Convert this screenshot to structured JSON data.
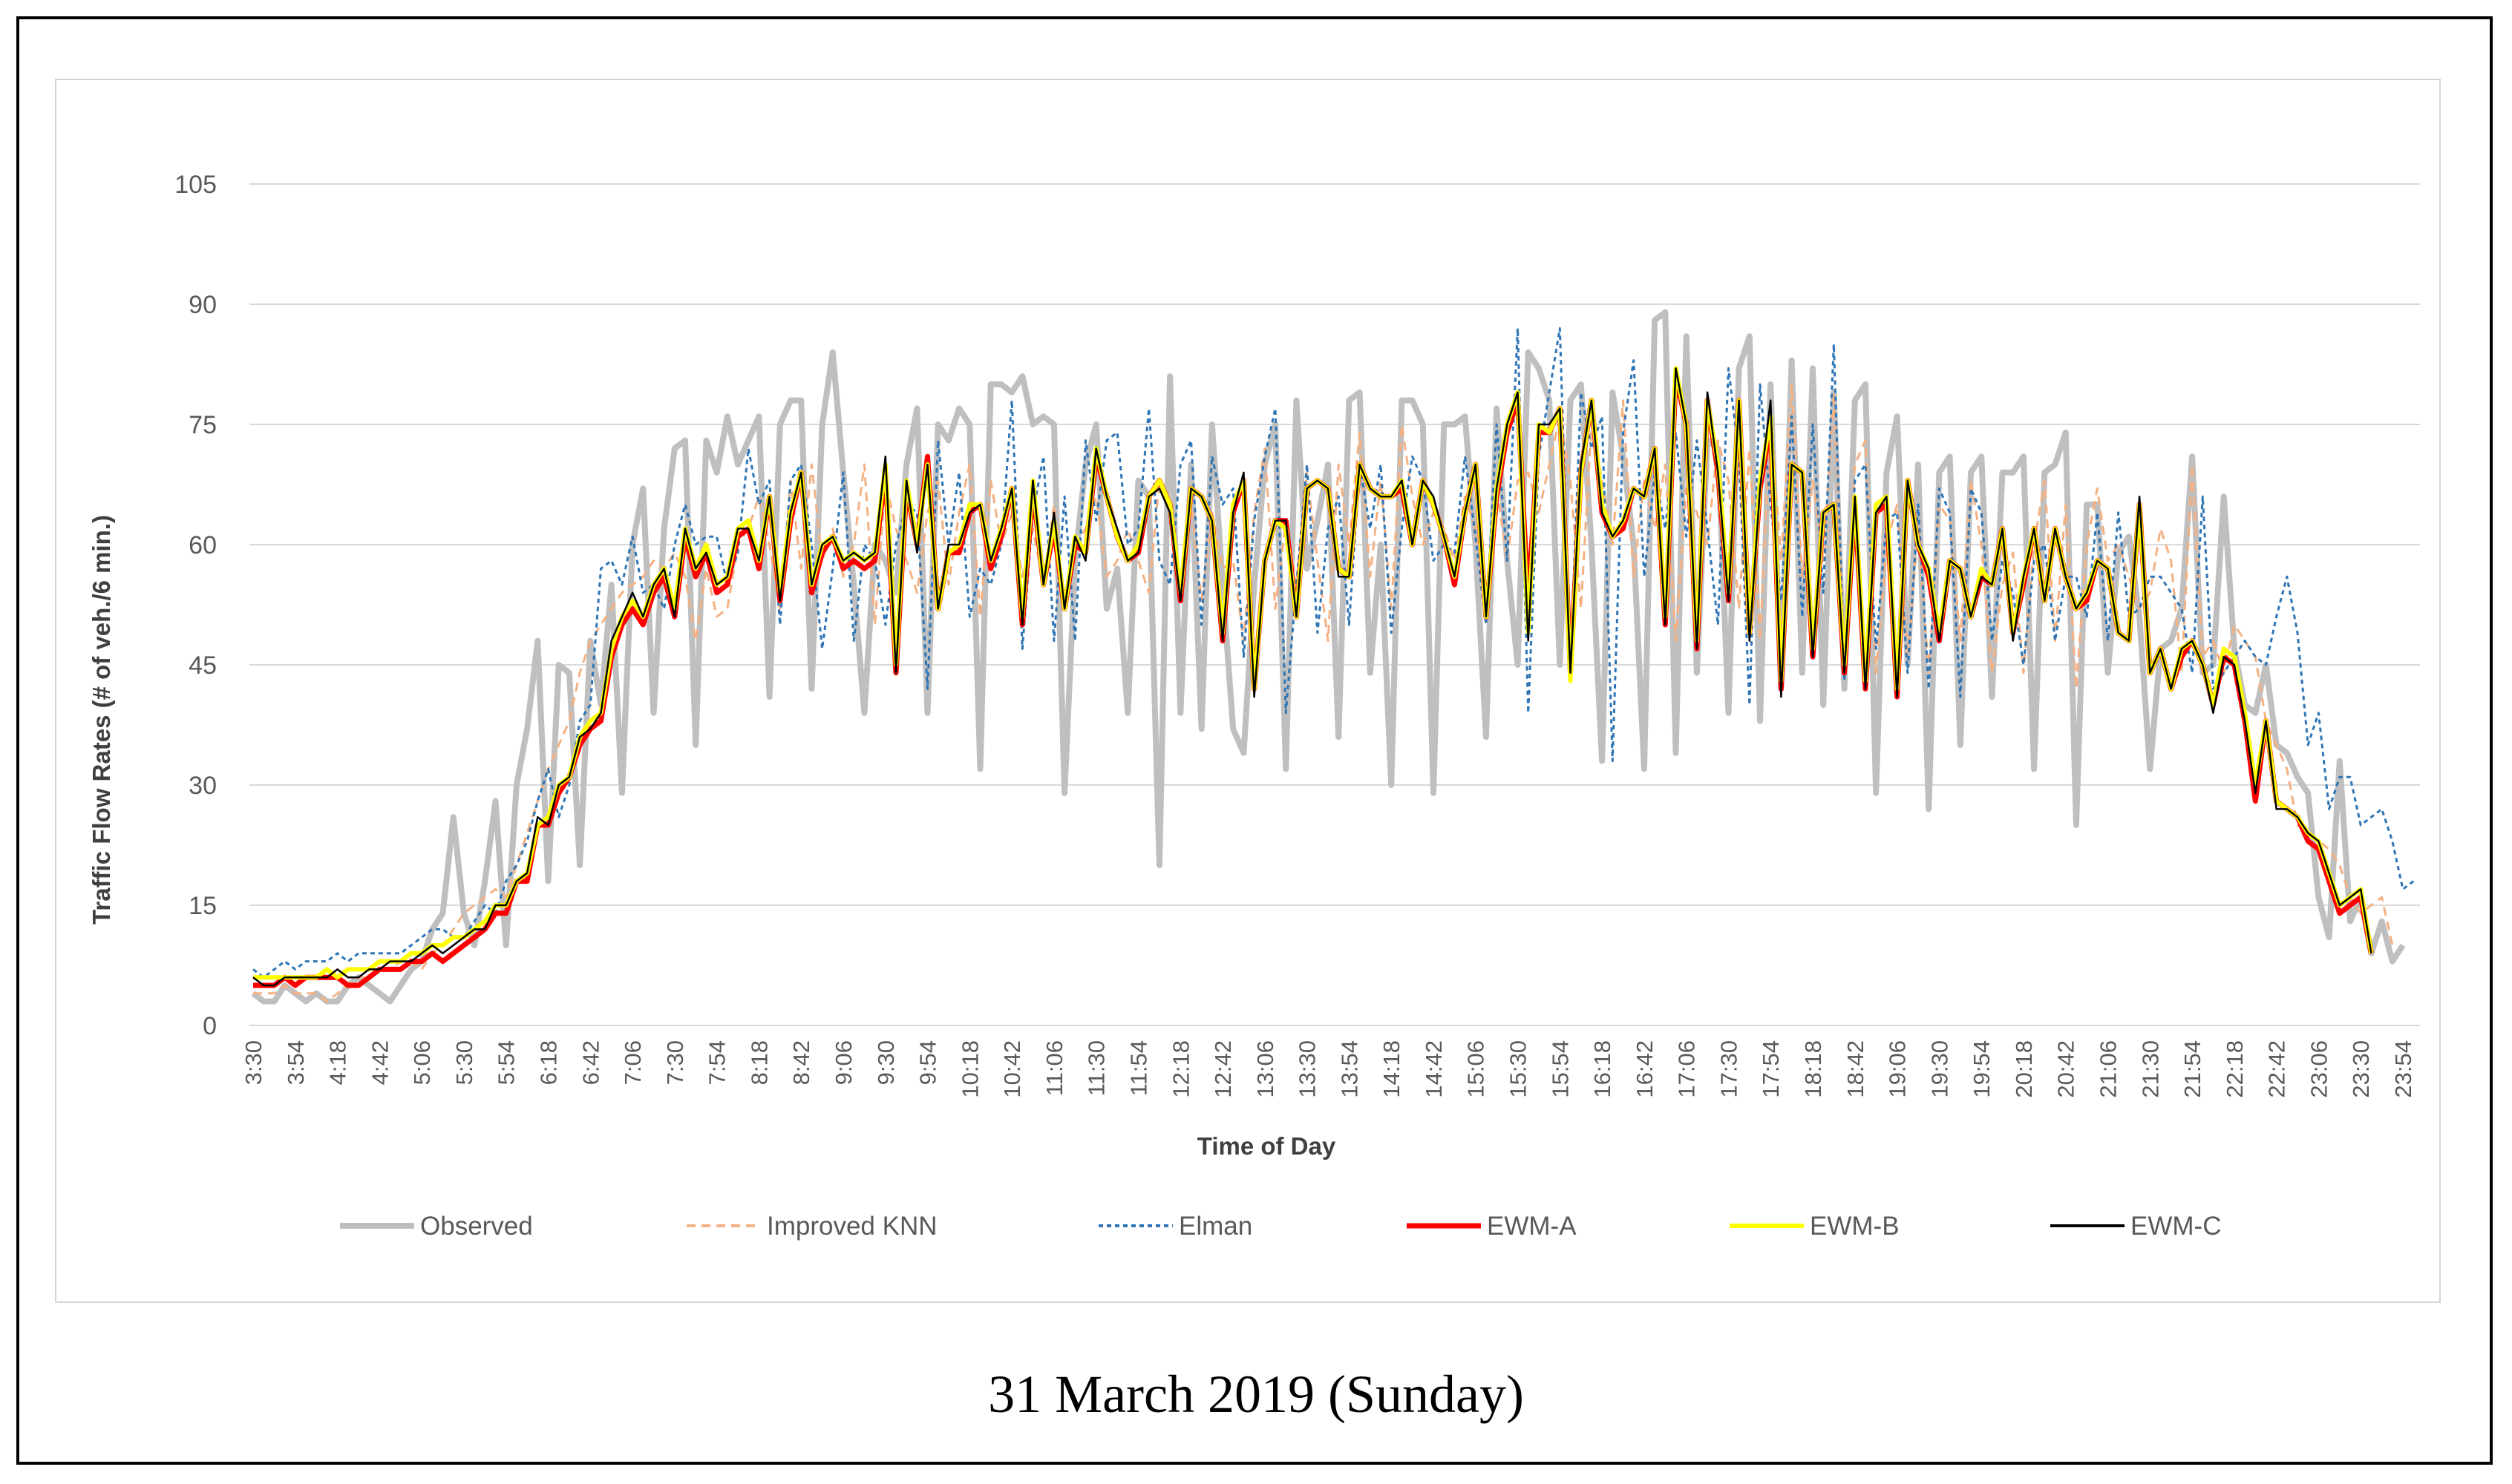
{
  "caption": "31 March 2019 (Sunday)",
  "chart_data": {
    "type": "line",
    "title": "",
    "xlabel": "Time of Day",
    "ylabel": "Traffic Flow Rates (# of veh./6 min.)",
    "ylim": [
      0,
      105
    ],
    "yticks": [
      0,
      15,
      30,
      45,
      60,
      75,
      90,
      105
    ],
    "grid": "horizontal",
    "legend_position": "bottom",
    "x_tick_labels": [
      "3:30",
      "3:54",
      "4:18",
      "4:42",
      "5:06",
      "5:30",
      "5:54",
      "6:18",
      "6:42",
      "7:06",
      "7:30",
      "7:54",
      "8:18",
      "8:42",
      "9:06",
      "9:30",
      "9:54",
      "10:18",
      "10:42",
      "11:06",
      "11:30",
      "11:54",
      "12:18",
      "12:42",
      "13:06",
      "13:30",
      "13:54",
      "14:18",
      "14:42",
      "15:06",
      "15:30",
      "15:54",
      "16:18",
      "16:42",
      "17:06",
      "17:30",
      "17:54",
      "18:18",
      "18:42",
      "19:06",
      "19:30",
      "19:54",
      "20:18",
      "20:42",
      "21:06",
      "21:30",
      "21:54",
      "22:18",
      "22:42",
      "23:06",
      "23:30",
      "23:54"
    ],
    "x_first": "3:30",
    "x_last": "23:54",
    "x_step_minutes": 6,
    "series": [
      {
        "name": "Observed",
        "color": "#bfbfbf",
        "style": "solid",
        "values": [
          4,
          3,
          3,
          5,
          4,
          3,
          4,
          3,
          3,
          5,
          6,
          5,
          4,
          3,
          5,
          7,
          8,
          12,
          14,
          26,
          14,
          10,
          18,
          28,
          10,
          30,
          37,
          48,
          18,
          45,
          44,
          20,
          48,
          40,
          55,
          29,
          60,
          67,
          39,
          62,
          72,
          73,
          35,
          73,
          69,
          76,
          70,
          73,
          76,
          41,
          75,
          78,
          78,
          42,
          75,
          84,
          69,
          55,
          39,
          60,
          58,
          54,
          70,
          77,
          39,
          75,
          73,
          77,
          75,
          32,
          80,
          80,
          79,
          81,
          75,
          76,
          75,
          29,
          58,
          70,
          75,
          52,
          57,
          39,
          68,
          66,
          20,
          81,
          39,
          70,
          37,
          75,
          55,
          37,
          34,
          55,
          70,
          75,
          32,
          78,
          57,
          63,
          70,
          36,
          78,
          79,
          44,
          60,
          30,
          78,
          78,
          75,
          29,
          75,
          75,
          76,
          60,
          36,
          77,
          58,
          45,
          84,
          82,
          78,
          45,
          78,
          80,
          60,
          33,
          79,
          71,
          60,
          32,
          88,
          89,
          34,
          86,
          44,
          73,
          72,
          39,
          82,
          86,
          38,
          80,
          42,
          83,
          44,
          82,
          40,
          79,
          42,
          78,
          80,
          29,
          69,
          76,
          45,
          70,
          27,
          69,
          71,
          35,
          69,
          71,
          41,
          69,
          69,
          71,
          32,
          69,
          70,
          74,
          25,
          65,
          65,
          44,
          59,
          61,
          51,
          32,
          47,
          48,
          52,
          71,
          44,
          45,
          66,
          47,
          40,
          39,
          45,
          35,
          34,
          31,
          29,
          16,
          11,
          33,
          13,
          16,
          9,
          13,
          8,
          10
        ]
      },
      {
        "name": "Improved KNN",
        "color": "#f4b183",
        "style": "dashed",
        "values": [
          4,
          4,
          4,
          5,
          4,
          4,
          4,
          3,
          4,
          5,
          6,
          6,
          7,
          7,
          8,
          8,
          7,
          9,
          10,
          12,
          14,
          15,
          16,
          17,
          16,
          20,
          24,
          28,
          32,
          35,
          38,
          44,
          48,
          50,
          52,
          54,
          55,
          56,
          58,
          57,
          59,
          56,
          48,
          57,
          51,
          52,
          60,
          62,
          66,
          60,
          52,
          68,
          57,
          70,
          58,
          62,
          56,
          60,
          70,
          50,
          68,
          62,
          58,
          54,
          64,
          68,
          55,
          64,
          70,
          51,
          68,
          60,
          64,
          56,
          62,
          55,
          65,
          52,
          60,
          62,
          66,
          56,
          58,
          62,
          58,
          54,
          68,
          65,
          55,
          66,
          53,
          64,
          57,
          58,
          48,
          64,
          72,
          52,
          63,
          55,
          69,
          58,
          48,
          70,
          60,
          74,
          56,
          68,
          52,
          75,
          66,
          60,
          64,
          62,
          58,
          66,
          62,
          54,
          67,
          58,
          68,
          69,
          64,
          70,
          76,
          68,
          52,
          75,
          68,
          60,
          78,
          56,
          68,
          62,
          70,
          48,
          67,
          64,
          60,
          73,
          68,
          52,
          72,
          48,
          76,
          58,
          80,
          56,
          68,
          58,
          79,
          46,
          70,
          73,
          44,
          60,
          65,
          46,
          62,
          44,
          65,
          63,
          48,
          68,
          60,
          44,
          55,
          59,
          44,
          60,
          68,
          48,
          65,
          42,
          60,
          67,
          58,
          60,
          56,
          52,
          54,
          62,
          58,
          44,
          70,
          46,
          48,
          44,
          50,
          48,
          46,
          38,
          35,
          32,
          25,
          24,
          23,
          22,
          20,
          16,
          14,
          15,
          16,
          10
        ]
      },
      {
        "name": "Elman",
        "color": "#2e75b6",
        "style": "dotted",
        "values": [
          7,
          6,
          7,
          8,
          7,
          8,
          8,
          8,
          9,
          8,
          9,
          9,
          9,
          9,
          9,
          10,
          11,
          12,
          12,
          11,
          11,
          13,
          15,
          14,
          18,
          20,
          23,
          28,
          32,
          26,
          30,
          38,
          40,
          57,
          58,
          55,
          61,
          54,
          55,
          52,
          60,
          65,
          60,
          61,
          61,
          55,
          59,
          72,
          65,
          68,
          50,
          68,
          70,
          60,
          47,
          57,
          69,
          48,
          60,
          58,
          50,
          60,
          65,
          64,
          42,
          73,
          60,
          69,
          51,
          57,
          55,
          60,
          78,
          47,
          64,
          71,
          48,
          66,
          48,
          73,
          63,
          73,
          74,
          60,
          62,
          77,
          58,
          55,
          70,
          73,
          50,
          71,
          65,
          67,
          46,
          63,
          71,
          77,
          39,
          55,
          70,
          49,
          62,
          66,
          50,
          70,
          62,
          70,
          49,
          62,
          71,
          68,
          58,
          60,
          59,
          71,
          61,
          50,
          75,
          58,
          87,
          39,
          71,
          79,
          87,
          45,
          79,
          72,
          76,
          33,
          74,
          83,
          56,
          69,
          62,
          74,
          61,
          73,
          62,
          50,
          82,
          71,
          40,
          80,
          65,
          53,
          76,
          51,
          75,
          54,
          85,
          43,
          68,
          70,
          47,
          63,
          64,
          44,
          65,
          42,
          67,
          64,
          41,
          67,
          64,
          48,
          58,
          54,
          45,
          58,
          60,
          48,
          56,
          56,
          51,
          64,
          48,
          64,
          51,
          52,
          56,
          56,
          54,
          52,
          44,
          66,
          42,
          44,
          46,
          48,
          46,
          45,
          51,
          56,
          49,
          35,
          39,
          27,
          31,
          31,
          25,
          26,
          27,
          23,
          17,
          18
        ]
      },
      {
        "name": "EWM-A",
        "color": "#ff0000",
        "style": "solid",
        "values": [
          5,
          5,
          5,
          6,
          5,
          6,
          6,
          6,
          6,
          5,
          5,
          6,
          7,
          7,
          7,
          8,
          8,
          9,
          8,
          9,
          10,
          11,
          12,
          14,
          14,
          18,
          18,
          25,
          25,
          29,
          31,
          35,
          37,
          38,
          46,
          50,
          52,
          50,
          54,
          56,
          51,
          61,
          56,
          59,
          54,
          55,
          61,
          62,
          57,
          66,
          53,
          63,
          69,
          54,
          59,
          61,
          57,
          58,
          57,
          58,
          69,
          44,
          67,
          60,
          71,
          52,
          59,
          59,
          64,
          65,
          57,
          61,
          67,
          50,
          67,
          55,
          62,
          52,
          60,
          59,
          71,
          66,
          61,
          58,
          59,
          66,
          68,
          65,
          53,
          67,
          66,
          63,
          48,
          64,
          68,
          42,
          58,
          63,
          63,
          51,
          67,
          68,
          67,
          57,
          56,
          70,
          67,
          66,
          66,
          67,
          60,
          68,
          65,
          61,
          55,
          64,
          70,
          51,
          66,
          74,
          78,
          53,
          74,
          74,
          77,
          44,
          69,
          78,
          64,
          61,
          62,
          67,
          66,
          72,
          50,
          81,
          75,
          47,
          78,
          69,
          53,
          78,
          49,
          67,
          75,
          42,
          70,
          69,
          46,
          64,
          65,
          44,
          65,
          42,
          64,
          65,
          41,
          68,
          60,
          56,
          48,
          58,
          57,
          51,
          56,
          55,
          62,
          49,
          55,
          62,
          53,
          62,
          56,
          52,
          53,
          58,
          57,
          49,
          48,
          65,
          44,
          47,
          42,
          46,
          48,
          45,
          40,
          46,
          45,
          38,
          28,
          38,
          28,
          27,
          26,
          23,
          22,
          18,
          14,
          15,
          16,
          9
        ]
      },
      {
        "name": "EWM-B",
        "color": "#ffff00",
        "style": "solid",
        "values": [
          6,
          6,
          6,
          6,
          6,
          6,
          6,
          7,
          6,
          7,
          7,
          7,
          8,
          8,
          8,
          9,
          9,
          10,
          10,
          11,
          11,
          12,
          13,
          15,
          15,
          18,
          19,
          25,
          26,
          30,
          31,
          36,
          38,
          39,
          47,
          51,
          53,
          51,
          55,
          57,
          52,
          62,
          57,
          60,
          55,
          56,
          62,
          63,
          58,
          66,
          54,
          64,
          69,
          55,
          60,
          61,
          58,
          59,
          58,
          59,
          70,
          45,
          68,
          60,
          70,
          52,
          59,
          60,
          65,
          65,
          58,
          62,
          67,
          51,
          68,
          55,
          63,
          52,
          61,
          59,
          72,
          66,
          61,
          58,
          60,
          66,
          68,
          65,
          54,
          67,
          66,
          63,
          49,
          65,
          68,
          42,
          58,
          63,
          62,
          51,
          67,
          68,
          67,
          57,
          56,
          70,
          67,
          66,
          66,
          68,
          60,
          68,
          65,
          61,
          56,
          64,
          70,
          51,
          67,
          75,
          79,
          49,
          75,
          74,
          77,
          43,
          69,
          78,
          65,
          61,
          63,
          67,
          66,
          72,
          51,
          82,
          75,
          48,
          78,
          70,
          54,
          78,
          49,
          68,
          76,
          43,
          70,
          69,
          47,
          64,
          65,
          45,
          66,
          43,
          65,
          66,
          42,
          68,
          60,
          57,
          49,
          58,
          57,
          51,
          57,
          55,
          62,
          49,
          56,
          62,
          53,
          62,
          56,
          52,
          54,
          58,
          57,
          49,
          48,
          65,
          44,
          47,
          42,
          47,
          48,
          45,
          40,
          47,
          46,
          39,
          30,
          38,
          28,
          27,
          26,
          24,
          23,
          19,
          15,
          16,
          17,
          9
        ]
      },
      {
        "name": "EWM-C",
        "color": "#000000",
        "style": "solid",
        "values": [
          6,
          5,
          5,
          6,
          6,
          6,
          6,
          6,
          7,
          6,
          6,
          7,
          7,
          8,
          8,
          8,
          9,
          10,
          9,
          10,
          11,
          12,
          12,
          15,
          15,
          18,
          19,
          26,
          25,
          30,
          31,
          36,
          37,
          39,
          48,
          51,
          54,
          51,
          55,
          57,
          51,
          62,
          57,
          59,
          55,
          56,
          62,
          62,
          58,
          66,
          53,
          64,
          69,
          55,
          60,
          61,
          58,
          59,
          58,
          59,
          71,
          44,
          68,
          59,
          70,
          52,
          60,
          60,
          64,
          65,
          58,
          62,
          67,
          50,
          68,
          55,
          64,
          52,
          61,
          58,
          72,
          66,
          62,
          58,
          59,
          66,
          67,
          64,
          53,
          67,
          66,
          63,
          48,
          64,
          69,
          41,
          58,
          63,
          63,
          51,
          67,
          68,
          67,
          56,
          56,
          70,
          67,
          66,
          66,
          68,
          60,
          68,
          66,
          61,
          56,
          64,
          70,
          51,
          67,
          75,
          79,
          48,
          75,
          75,
          77,
          44,
          70,
          78,
          64,
          61,
          63,
          67,
          66,
          72,
          50,
          82,
          75,
          47,
          79,
          69,
          53,
          78,
          48,
          67,
          78,
          41,
          70,
          69,
          46,
          64,
          65,
          44,
          66,
          42,
          64,
          66,
          41,
          68,
          60,
          57,
          48,
          58,
          57,
          51,
          56,
          55,
          62,
          48,
          56,
          62,
          53,
          62,
          56,
          52,
          54,
          58,
          57,
          49,
          48,
          66,
          44,
          47,
          42,
          47,
          48,
          45,
          39,
          46,
          45,
          38,
          29,
          38,
          27,
          27,
          26,
          24,
          23,
          19,
          15,
          16,
          17,
          9
        ]
      }
    ]
  }
}
